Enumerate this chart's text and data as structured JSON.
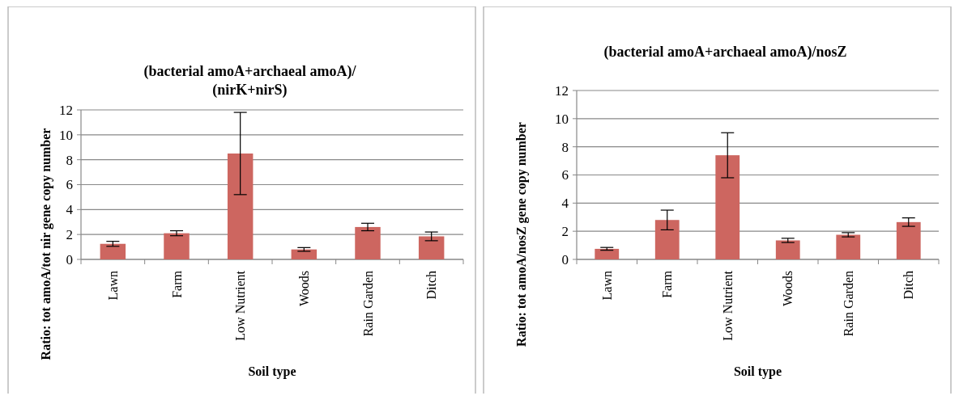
{
  "chart_data": [
    {
      "type": "bar",
      "title": "(bacterial amoA+archaeal amoA)/(nirK+nirS)",
      "xlabel": "Soil type",
      "ylabel": "Ratio: tot amoA/tot nir gene copy number",
      "categories": [
        "Lawn",
        "Farm",
        "Low Nutrient",
        "Woods",
        "Rain Garden",
        "Ditch"
      ],
      "values": [
        1.25,
        2.1,
        8.5,
        0.8,
        2.6,
        1.85
      ],
      "errors": [
        0.2,
        0.2,
        3.3,
        0.15,
        0.3,
        0.35
      ],
      "color": "#cd6660",
      "ylim": [
        0,
        12
      ],
      "yticks": [
        0,
        2,
        4,
        6,
        8,
        10,
        12
      ],
      "grid": "y"
    },
    {
      "type": "bar",
      "title": "(bacterial amoA+archaeal amoA)/nosZ",
      "xlabel": "Soil type",
      "ylabel": "Ratio: tot amoA/nosZ gene copy number",
      "categories": [
        "Lawn",
        "Farm",
        "Low Nutrient",
        "Woods",
        "Rain Garden",
        "Ditch"
      ],
      "values": [
        0.75,
        2.8,
        7.4,
        1.35,
        1.75,
        2.65
      ],
      "errors": [
        0.1,
        0.7,
        1.6,
        0.15,
        0.15,
        0.3
      ],
      "color": "#cd6660",
      "ylim": [
        0,
        12
      ],
      "yticks": [
        0,
        2,
        4,
        6,
        8,
        10,
        12
      ],
      "grid": "y"
    }
  ]
}
